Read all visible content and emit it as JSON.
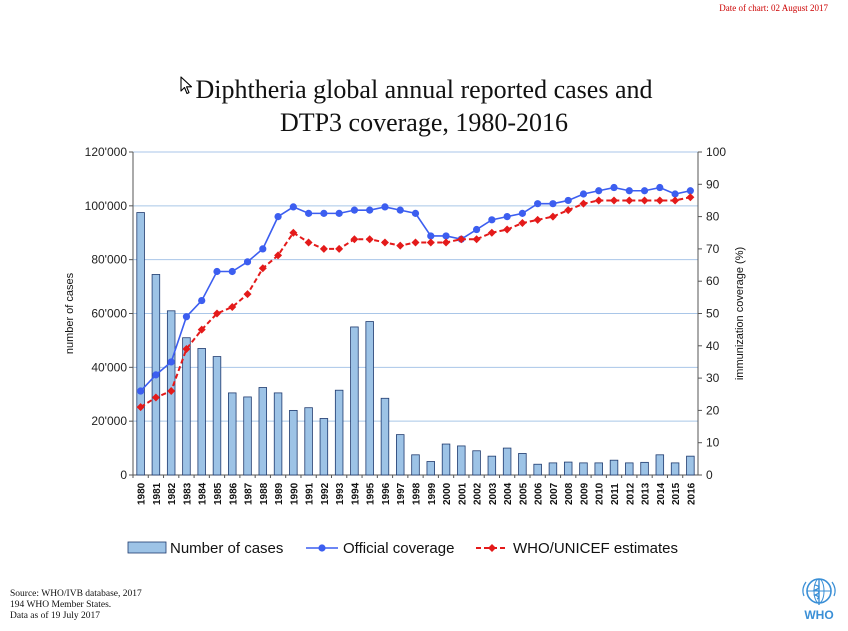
{
  "date_note": "Date of chart: 02 August 2017",
  "title_line1": "Diphtheria global annual reported cases and",
  "title_line2": "DTP3 coverage, 1980-2016",
  "source": {
    "line1": "Source: WHO/IVB database, 2017",
    "line2": "194 WHO Member States.",
    "line3": "Data as of 19 July 2017"
  },
  "logo_text": "WHO",
  "colors": {
    "bars": "#9dc3e6",
    "official": "#3c5ef0",
    "estimates": "#e41a1a",
    "grid": "#a9c6e8"
  },
  "chart_data": {
    "type": "bar",
    "title": "Diphtheria global annual reported cases and DTP3 coverage, 1980-2016",
    "categories": [
      "1980",
      "1981",
      "1982",
      "1983",
      "1984",
      "1985",
      "1986",
      "1987",
      "1988",
      "1989",
      "1990",
      "1991",
      "1992",
      "1993",
      "1994",
      "1995",
      "1996",
      "1997",
      "1998",
      "1999",
      "2000",
      "2001",
      "2002",
      "2003",
      "2004",
      "2005",
      "2006",
      "2007",
      "2008",
      "2009",
      "2010",
      "2011",
      "2012",
      "2013",
      "2014",
      "2015",
      "2016"
    ],
    "ylabel": "number of cases",
    "y2label": "immunization coverage (%)",
    "ylim": [
      0,
      120000
    ],
    "y2lim": [
      0,
      100
    ],
    "yticks": [
      "0",
      "20'000",
      "40'000",
      "60'000",
      "80'000",
      "100'000",
      "120'000"
    ],
    "y2ticks": [
      "0",
      "10",
      "20",
      "30",
      "40",
      "50",
      "60",
      "70",
      "80",
      "90",
      "100"
    ],
    "grid": true,
    "legend_position": "bottom",
    "series": [
      {
        "name": "Number of cases",
        "type": "bar",
        "axis": "left",
        "values": [
          97500,
          74500,
          61000,
          51000,
          47000,
          44000,
          30500,
          29000,
          32500,
          30500,
          24000,
          25000,
          21000,
          31500,
          55000,
          57000,
          28500,
          15000,
          7500,
          5000,
          11500,
          10800,
          9000,
          7000,
          10000,
          8000,
          4000,
          4500,
          4800,
          4500,
          4500,
          5500,
          4500,
          4700,
          7500,
          4500,
          7000
        ]
      },
      {
        "name": "Official coverage",
        "type": "line",
        "axis": "right",
        "values": [
          26,
          31,
          35,
          49,
          54,
          63,
          63,
          66,
          70,
          80,
          83,
          81,
          81,
          81,
          82,
          82,
          83,
          82,
          81,
          74,
          74,
          73,
          76,
          79,
          80,
          81,
          84,
          84,
          85,
          87,
          88,
          89,
          88,
          88,
          89,
          87,
          88
        ]
      },
      {
        "name": "WHO/UNICEF estimates",
        "type": "line",
        "axis": "right",
        "dashed": true,
        "values": [
          21,
          24,
          26,
          39,
          45,
          50,
          52,
          56,
          64,
          68,
          75,
          72,
          70,
          70,
          73,
          73,
          72,
          71,
          72,
          72,
          72,
          73,
          73,
          75,
          76,
          78,
          79,
          80,
          82,
          84,
          85,
          85,
          85,
          85,
          85,
          85,
          86
        ]
      }
    ]
  }
}
